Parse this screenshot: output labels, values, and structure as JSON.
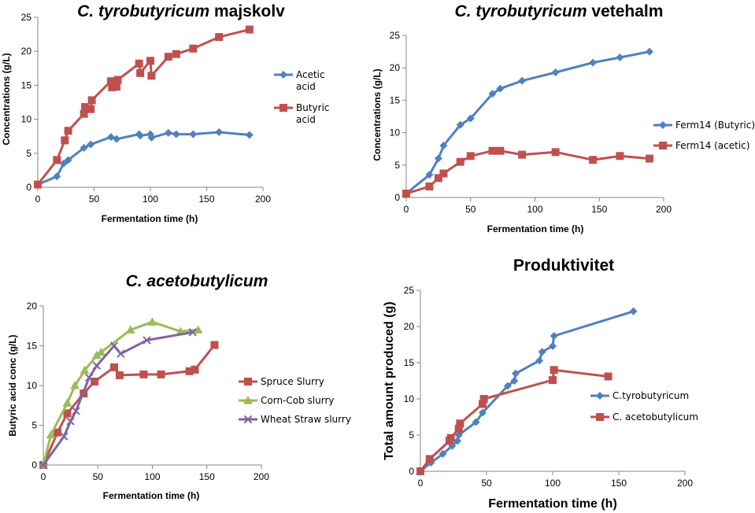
{
  "colors": {
    "blue": "#4f81bd",
    "red": "#c0504d",
    "green": "#9bbb59",
    "purple": "#8064a2",
    "axis": "#868686"
  },
  "chart_data": [
    {
      "type": "line",
      "title_italic": "C. tyrobutyricum",
      "title_rest": " majskolv",
      "xlabel": "Fermentation time (h)",
      "ylabel": "Concentrations (g/L)",
      "xlim": [
        0,
        200
      ],
      "xticks": [
        0,
        50,
        100,
        150,
        200
      ],
      "ylim": [
        0,
        25
      ],
      "yticks": [
        0,
        5,
        10,
        15,
        20,
        25
      ],
      "legend_position": "right",
      "series": [
        {
          "name": [
            "Acetic",
            "acid"
          ],
          "color": "#4f81bd",
          "marker": "diamond",
          "x": [
            0,
            17,
            23,
            27,
            41,
            47,
            65,
            70,
            90,
            91,
            100,
            101,
            116,
            123,
            138,
            161,
            188
          ],
          "y": [
            0.4,
            1.6,
            3.5,
            4.0,
            5.8,
            6.3,
            7.4,
            7.1,
            7.8,
            7.6,
            7.8,
            7.3,
            8.0,
            7.8,
            7.8,
            8.1,
            7.7
          ]
        },
        {
          "name": [
            "Butyric",
            "acid"
          ],
          "color": "#c0504d",
          "marker": "square",
          "x": [
            0,
            17,
            24,
            27,
            41,
            42,
            47,
            48,
            65,
            66,
            70,
            71,
            90,
            91,
            100,
            101,
            116,
            123,
            138,
            161,
            188
          ],
          "y": [
            0.4,
            4.0,
            6.9,
            8.3,
            10.8,
            11.8,
            11.5,
            12.8,
            15.6,
            14.7,
            14.8,
            15.8,
            18.2,
            16.8,
            18.6,
            16.4,
            19.2,
            19.6,
            20.4,
            22.1,
            23.2
          ]
        }
      ]
    },
    {
      "type": "line",
      "title_italic": "C. tyrobutyricum",
      "title_rest": " vetehalm",
      "xlabel": "Fermentation time (h)",
      "ylabel": "Concentrations (g/L)",
      "xlim": [
        0,
        200
      ],
      "xticks": [
        0,
        50,
        100,
        150,
        200
      ],
      "ylim": [
        0,
        25
      ],
      "yticks": [
        0,
        5,
        10,
        15,
        20,
        25
      ],
      "legend_position": "right",
      "series": [
        {
          "name": [
            "Ferm14 (Butyric)"
          ],
          "color": "#4f81bd",
          "marker": "diamond",
          "x": [
            0,
            18,
            25,
            29,
            42,
            50,
            67,
            73,
            90,
            116,
            145,
            166,
            189
          ],
          "y": [
            0.6,
            3.5,
            6.0,
            8.0,
            11.2,
            12.2,
            16.0,
            16.8,
            18.0,
            19.3,
            20.8,
            21.6,
            22.5
          ]
        },
        {
          "name": [
            "Ferm14 (acetic)"
          ],
          "color": "#c0504d",
          "marker": "square",
          "x": [
            0,
            18,
            25,
            29,
            42,
            50,
            67,
            73,
            90,
            116,
            145,
            166,
            189
          ],
          "y": [
            0.6,
            1.7,
            3.0,
            3.7,
            5.5,
            6.4,
            7.2,
            7.2,
            6.6,
            7.0,
            5.8,
            6.4,
            6.0
          ]
        }
      ]
    },
    {
      "type": "line",
      "title_italic": "C. acetobutylicum",
      "title_rest": "",
      "xlabel": "Fermentation time (h)",
      "ylabel": "Butyric acid conc (g/L)",
      "xlim": [
        0,
        200
      ],
      "xticks": [
        0,
        50,
        100,
        150,
        200
      ],
      "ylim": [
        0,
        20
      ],
      "yticks": [
        0,
        5,
        10,
        15,
        20
      ],
      "legend_position": "right",
      "series": [
        {
          "name": [
            "Spruce Slurry"
          ],
          "color": "#c0504d",
          "marker": "square",
          "x": [
            0,
            13,
            22,
            37,
            47,
            65,
            70,
            92,
            108,
            134,
            139,
            157
          ],
          "y": [
            0,
            4.1,
            6.5,
            9.0,
            10.5,
            12.3,
            11.3,
            11.4,
            11.4,
            11.8,
            12.0,
            15.1
          ]
        },
        {
          "name": [
            "Corn-Cob slurry"
          ],
          "color": "#9bbb59",
          "marker": "triangle",
          "x": [
            0,
            7,
            22,
            29,
            38,
            49,
            53,
            80,
            100,
            126,
            142
          ],
          "y": [
            0,
            3.8,
            7.8,
            10.0,
            11.9,
            13.8,
            14.2,
            17.0,
            18.0,
            16.8,
            17.0
          ]
        },
        {
          "name": [
            "Wheat Straw slurry"
          ],
          "color": "#8064a2",
          "marker": "x",
          "x": [
            0,
            19,
            25,
            30,
            42,
            49,
            65,
            71,
            95,
            137
          ],
          "y": [
            0,
            3.6,
            5.5,
            6.8,
            11.0,
            12.5,
            15.0,
            14.0,
            15.7,
            16.7
          ]
        }
      ]
    },
    {
      "type": "line",
      "title": "Produktivitet",
      "xlabel": "Fermentation time (h)",
      "ylabel": "Total amount produced (g)",
      "xlim": [
        0,
        200
      ],
      "xticks": [
        0,
        50,
        100,
        150,
        200
      ],
      "ylim": [
        0,
        25
      ],
      "yticks": [
        0,
        5,
        10,
        15,
        20,
        25
      ],
      "legend_position": "right",
      "series": [
        {
          "name": [
            "C.tyrobutyricum"
          ],
          "color": "#4f81bd",
          "marker": "diamond",
          "x": [
            0,
            8,
            17,
            24,
            28,
            29,
            42,
            47,
            66,
            71,
            72,
            90,
            92,
            100,
            101,
            161
          ],
          "y": [
            0,
            1.2,
            2.4,
            3.5,
            4.2,
            5.0,
            6.8,
            8.1,
            11.8,
            12.5,
            13.5,
            15.3,
            16.5,
            17.3,
            18.7,
            22.1
          ]
        },
        {
          "name": [
            "C. acetobutylicum"
          ],
          "color": "#c0504d",
          "marker": "square",
          "x": [
            0,
            7,
            22,
            23,
            29,
            30,
            47,
            48,
            100,
            101,
            142
          ],
          "y": [
            0,
            1.7,
            4.2,
            4.6,
            5.9,
            6.6,
            9.3,
            10.0,
            12.6,
            14.0,
            13.1
          ]
        }
      ]
    }
  ]
}
